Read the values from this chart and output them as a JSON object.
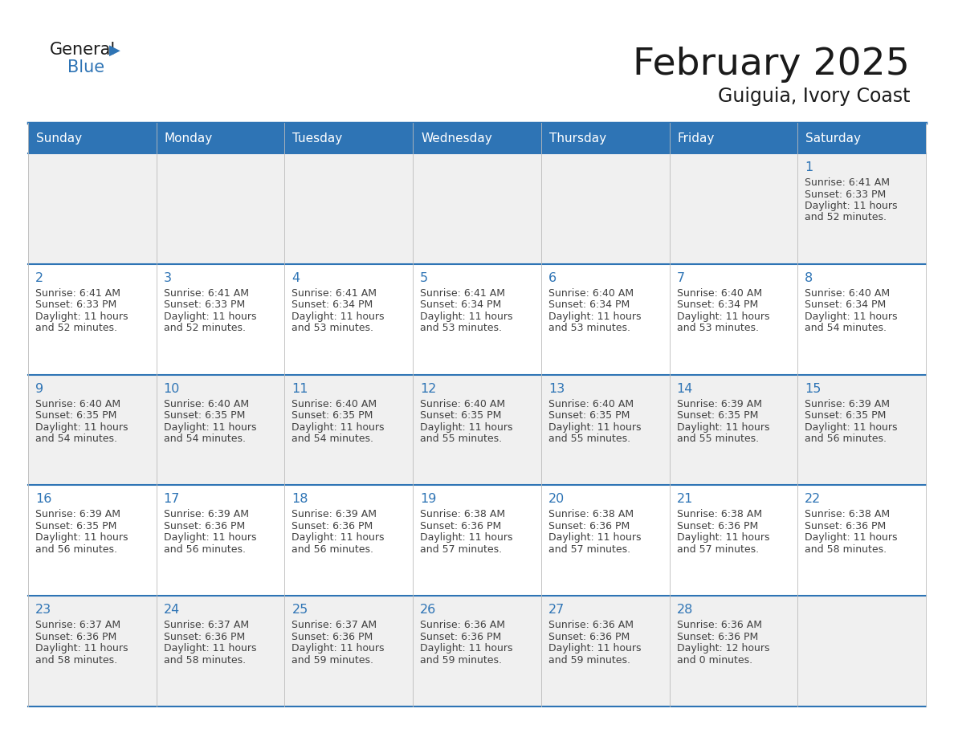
{
  "title": "February 2025",
  "subtitle": "Guiguia, Ivory Coast",
  "header_color": "#2E74B5",
  "header_text_color": "#FFFFFF",
  "day_names": [
    "Sunday",
    "Monday",
    "Tuesday",
    "Wednesday",
    "Thursday",
    "Friday",
    "Saturday"
  ],
  "background_color": "#FFFFFF",
  "cell_bg_even": "#F0F0F0",
  "cell_bg_odd": "#FFFFFF",
  "border_color": "#2E74B5",
  "date_color": "#2E74B5",
  "text_color": "#404040",
  "logo_general_color": "#1a1a1a",
  "logo_blue_color": "#2E74B5",
  "title_color": "#1a1a1a",
  "calendar": [
    [
      null,
      null,
      null,
      null,
      null,
      null,
      1
    ],
    [
      2,
      3,
      4,
      5,
      6,
      7,
      8
    ],
    [
      9,
      10,
      11,
      12,
      13,
      14,
      15
    ],
    [
      16,
      17,
      18,
      19,
      20,
      21,
      22
    ],
    [
      23,
      24,
      25,
      26,
      27,
      28,
      null
    ]
  ],
  "sunrise": {
    "1": "6:41 AM",
    "2": "6:41 AM",
    "3": "6:41 AM",
    "4": "6:41 AM",
    "5": "6:41 AM",
    "6": "6:40 AM",
    "7": "6:40 AM",
    "8": "6:40 AM",
    "9": "6:40 AM",
    "10": "6:40 AM",
    "11": "6:40 AM",
    "12": "6:40 AM",
    "13": "6:40 AM",
    "14": "6:39 AM",
    "15": "6:39 AM",
    "16": "6:39 AM",
    "17": "6:39 AM",
    "18": "6:39 AM",
    "19": "6:38 AM",
    "20": "6:38 AM",
    "21": "6:38 AM",
    "22": "6:38 AM",
    "23": "6:37 AM",
    "24": "6:37 AM",
    "25": "6:37 AM",
    "26": "6:36 AM",
    "27": "6:36 AM",
    "28": "6:36 AM"
  },
  "sunset": {
    "1": "6:33 PM",
    "2": "6:33 PM",
    "3": "6:33 PM",
    "4": "6:34 PM",
    "5": "6:34 PM",
    "6": "6:34 PM",
    "7": "6:34 PM",
    "8": "6:34 PM",
    "9": "6:35 PM",
    "10": "6:35 PM",
    "11": "6:35 PM",
    "12": "6:35 PM",
    "13": "6:35 PM",
    "14": "6:35 PM",
    "15": "6:35 PM",
    "16": "6:35 PM",
    "17": "6:36 PM",
    "18": "6:36 PM",
    "19": "6:36 PM",
    "20": "6:36 PM",
    "21": "6:36 PM",
    "22": "6:36 PM",
    "23": "6:36 PM",
    "24": "6:36 PM",
    "25": "6:36 PM",
    "26": "6:36 PM",
    "27": "6:36 PM",
    "28": "6:36 PM"
  },
  "daylight": {
    "1": "11 hours and 52 minutes.",
    "2": "11 hours and 52 minutes.",
    "3": "11 hours and 52 minutes.",
    "4": "11 hours and 53 minutes.",
    "5": "11 hours and 53 minutes.",
    "6": "11 hours and 53 minutes.",
    "7": "11 hours and 53 minutes.",
    "8": "11 hours and 54 minutes.",
    "9": "11 hours and 54 minutes.",
    "10": "11 hours and 54 minutes.",
    "11": "11 hours and 54 minutes.",
    "12": "11 hours and 55 minutes.",
    "13": "11 hours and 55 minutes.",
    "14": "11 hours and 55 minutes.",
    "15": "11 hours and 56 minutes.",
    "16": "11 hours and 56 minutes.",
    "17": "11 hours and 56 minutes.",
    "18": "11 hours and 56 minutes.",
    "19": "11 hours and 57 minutes.",
    "20": "11 hours and 57 minutes.",
    "21": "11 hours and 57 minutes.",
    "22": "11 hours and 58 minutes.",
    "23": "11 hours and 58 minutes.",
    "24": "11 hours and 58 minutes.",
    "25": "11 hours and 59 minutes.",
    "26": "11 hours and 59 minutes.",
    "27": "11 hours and 59 minutes.",
    "28": "12 hours and 0 minutes."
  }
}
